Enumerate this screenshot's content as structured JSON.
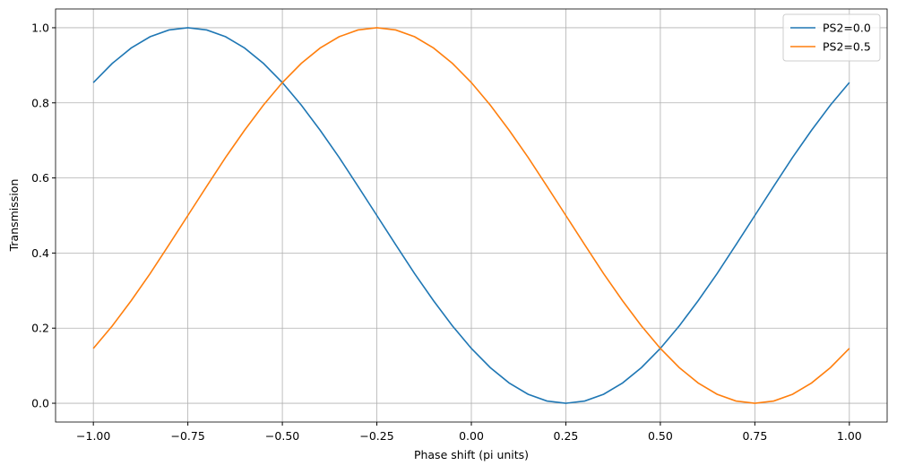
{
  "chart_data": {
    "type": "line",
    "xlabel": "Phase shift (pi units)",
    "ylabel": "Transmission",
    "x": [
      -1,
      -0.95,
      -0.9,
      -0.85,
      -0.8,
      -0.75,
      -0.7,
      -0.65,
      -0.6,
      -0.55,
      -0.5,
      -0.45,
      -0.4,
      -0.35,
      -0.3,
      -0.25,
      -0.2,
      -0.15,
      -0.1,
      -0.05,
      0,
      0.05,
      0.1,
      0.15,
      0.2,
      0.25,
      0.3,
      0.35,
      0.4,
      0.45,
      0.5,
      0.55,
      0.6,
      0.65,
      0.7,
      0.75,
      0.8,
      0.85,
      0.9,
      0.95,
      1
    ],
    "series": [
      {
        "name": "PS2=0.0",
        "color": "#1f77b4",
        "values": [
          0.854,
          0.905,
          0.946,
          0.976,
          0.994,
          1,
          0.994,
          0.976,
          0.946,
          0.905,
          0.854,
          0.794,
          0.727,
          0.655,
          0.578,
          0.5,
          0.422,
          0.345,
          0.273,
          0.206,
          0.146,
          0.095,
          0.054,
          0.024,
          0.006,
          0,
          0.006,
          0.024,
          0.054,
          0.095,
          0.146,
          0.206,
          0.273,
          0.345,
          0.422,
          0.5,
          0.578,
          0.655,
          0.727,
          0.794,
          0.854
        ]
      },
      {
        "name": "PS2=0.5",
        "color": "#ff7f0e",
        "values": [
          0.146,
          0.206,
          0.273,
          0.345,
          0.422,
          0.5,
          0.578,
          0.655,
          0.727,
          0.794,
          0.854,
          0.905,
          0.946,
          0.976,
          0.994,
          1,
          0.994,
          0.976,
          0.946,
          0.905,
          0.854,
          0.794,
          0.727,
          0.655,
          0.578,
          0.5,
          0.422,
          0.345,
          0.273,
          0.206,
          0.146,
          0.095,
          0.054,
          0.024,
          0.006,
          0,
          0.006,
          0.024,
          0.054,
          0.095,
          0.146
        ]
      }
    ],
    "xlim": [
      -1.1,
      1.1
    ],
    "ylim": [
      -0.05,
      1.05
    ],
    "xticks": [
      {
        "value": -1,
        "label": "−1.00"
      },
      {
        "value": -0.75,
        "label": "−0.75"
      },
      {
        "value": -0.5,
        "label": "−0.50"
      },
      {
        "value": -0.25,
        "label": "−0.25"
      },
      {
        "value": 0,
        "label": "0.00"
      },
      {
        "value": 0.25,
        "label": "0.25"
      },
      {
        "value": 0.5,
        "label": "0.50"
      },
      {
        "value": 0.75,
        "label": "0.75"
      },
      {
        "value": 1,
        "label": "1.00"
      }
    ],
    "yticks": [
      {
        "value": 0,
        "label": "0.0"
      },
      0.2,
      0.4,
      0.6,
      0.8,
      {
        "value": 1,
        "label": "1.0"
      }
    ],
    "grid": true,
    "legend": "upper-right"
  }
}
